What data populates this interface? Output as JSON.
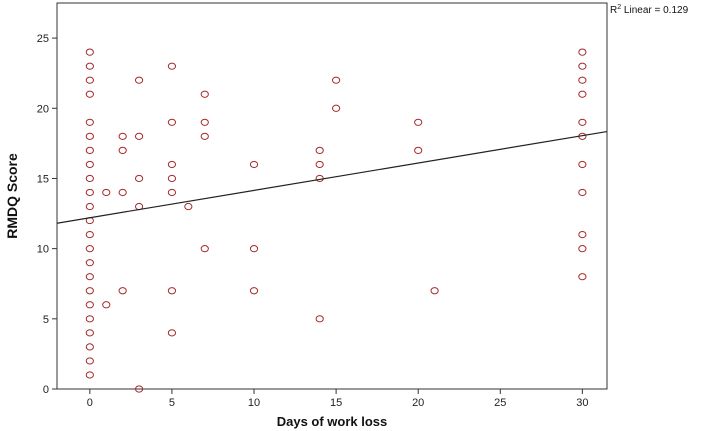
{
  "chart_data": {
    "type": "scatter",
    "title": "",
    "xlabel": "Days of work loss",
    "ylabel": "RMDQ Score",
    "xlim": [
      -2,
      31.5
    ],
    "ylim": [
      0,
      27.5
    ],
    "xticks": [
      0,
      5,
      10,
      15,
      20,
      25,
      30
    ],
    "yticks": [
      0,
      5,
      10,
      15,
      20,
      25
    ],
    "grid": false,
    "marker_color": "#a52a2a",
    "fit_line": {
      "label_prefix": "R",
      "label_sup": "2",
      "label_suffix": " Linear = 0.129",
      "color": "#222222",
      "intercept": 12.2,
      "slope": 0.195
    },
    "points": [
      [
        0,
        1
      ],
      [
        0,
        2
      ],
      [
        0,
        3
      ],
      [
        0,
        4
      ],
      [
        0,
        5
      ],
      [
        0,
        6
      ],
      [
        0,
        7
      ],
      [
        0,
        8
      ],
      [
        0,
        9
      ],
      [
        0,
        10
      ],
      [
        0,
        11
      ],
      [
        0,
        12
      ],
      [
        0,
        13
      ],
      [
        0,
        14
      ],
      [
        0,
        15
      ],
      [
        0,
        16
      ],
      [
        0,
        17
      ],
      [
        0,
        18
      ],
      [
        0,
        19
      ],
      [
        0,
        21
      ],
      [
        0,
        22
      ],
      [
        0,
        23
      ],
      [
        0,
        24
      ],
      [
        1,
        6
      ],
      [
        1,
        14
      ],
      [
        2,
        7
      ],
      [
        2,
        14
      ],
      [
        2,
        17
      ],
      [
        2,
        18
      ],
      [
        3,
        0
      ],
      [
        3,
        13
      ],
      [
        3,
        15
      ],
      [
        3,
        18
      ],
      [
        3,
        22
      ],
      [
        5,
        4
      ],
      [
        5,
        7
      ],
      [
        5,
        14
      ],
      [
        5,
        15
      ],
      [
        5,
        16
      ],
      [
        5,
        19
      ],
      [
        5,
        23
      ],
      [
        6,
        13
      ],
      [
        7,
        10
      ],
      [
        7,
        18
      ],
      [
        7,
        19
      ],
      [
        7,
        21
      ],
      [
        10,
        7
      ],
      [
        10,
        10
      ],
      [
        10,
        16
      ],
      [
        14,
        5
      ],
      [
        14,
        15
      ],
      [
        14,
        16
      ],
      [
        14,
        17
      ],
      [
        15,
        20
      ],
      [
        15,
        22
      ],
      [
        20,
        17
      ],
      [
        20,
        19
      ],
      [
        21,
        7
      ],
      [
        30,
        8
      ],
      [
        30,
        10
      ],
      [
        30,
        11
      ],
      [
        30,
        14
      ],
      [
        30,
        16
      ],
      [
        30,
        18
      ],
      [
        30,
        19
      ],
      [
        30,
        21
      ],
      [
        30,
        22
      ],
      [
        30,
        23
      ],
      [
        30,
        24
      ]
    ]
  }
}
